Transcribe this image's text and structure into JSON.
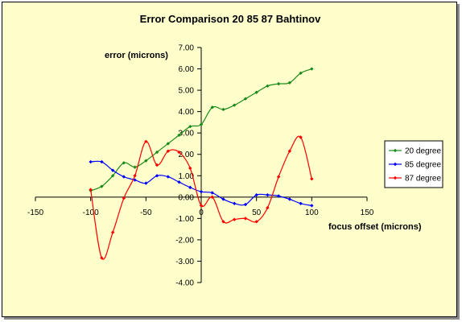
{
  "chart_data": {
    "type": "line",
    "title": "Error Comparison 20 85 87 Bahtinov",
    "xlabel": "focus offset (microns)",
    "ylabel": "error (microns)",
    "xlim": [
      -150,
      150
    ],
    "ylim": [
      -4,
      7
    ],
    "x_ticks": [
      -150,
      -100,
      -50,
      0,
      50,
      100,
      150
    ],
    "y_ticks": [
      7,
      6,
      5,
      4,
      3,
      2,
      1,
      0,
      -1,
      -2,
      -3,
      -4
    ],
    "x_tick_labels": [
      "-150",
      "-100",
      "-50",
      "0",
      "50",
      "100",
      "150"
    ],
    "y_tick_labels": [
      "7.00",
      "6.00",
      "5.00",
      "4.00",
      "3.00",
      "2.00",
      "1.00",
      "0.00",
      "-1.00",
      "-2.00",
      "-3.00",
      "-4.00"
    ],
    "grid": false,
    "legend_position": "right",
    "series": [
      {
        "name": "20 degree",
        "color": "#1a8a1a",
        "x": [
          -100,
          -90,
          -80,
          -70,
          -60,
          -50,
          -40,
          -30,
          -20,
          -10,
          0,
          10,
          20,
          30,
          40,
          50,
          60,
          70,
          80,
          90,
          100
        ],
        "y": [
          0.3,
          0.5,
          1.0,
          1.6,
          1.4,
          1.7,
          2.1,
          2.5,
          2.9,
          3.3,
          3.4,
          4.2,
          4.1,
          4.3,
          4.6,
          4.9,
          5.2,
          5.3,
          5.35,
          5.8,
          6.0
        ]
      },
      {
        "name": "85 degree",
        "color": "#0000ff",
        "x": [
          -100,
          -90,
          -80,
          -70,
          -60,
          -50,
          -40,
          -30,
          -20,
          -10,
          0,
          10,
          20,
          30,
          40,
          50,
          60,
          70,
          80,
          90,
          100
        ],
        "y": [
          1.65,
          1.65,
          1.25,
          0.95,
          0.8,
          0.65,
          1.0,
          0.95,
          0.7,
          0.45,
          0.25,
          0.2,
          -0.1,
          -0.3,
          -0.35,
          0.1,
          0.1,
          0.05,
          -0.1,
          -0.3,
          -0.4
        ]
      },
      {
        "name": "87 degree",
        "color": "#ff0000",
        "x": [
          -100,
          -90,
          -80,
          -70,
          -60,
          -50,
          -40,
          -30,
          -20,
          -10,
          0,
          10,
          20,
          30,
          40,
          50,
          60,
          70,
          80,
          90,
          100
        ],
        "y": [
          0.35,
          -2.85,
          -1.65,
          -0.05,
          1.0,
          2.6,
          1.5,
          2.15,
          2.1,
          1.35,
          -0.4,
          0.0,
          -1.15,
          -1.05,
          -1.0,
          -1.15,
          -0.5,
          0.95,
          2.15,
          2.8,
          0.85
        ]
      }
    ]
  }
}
